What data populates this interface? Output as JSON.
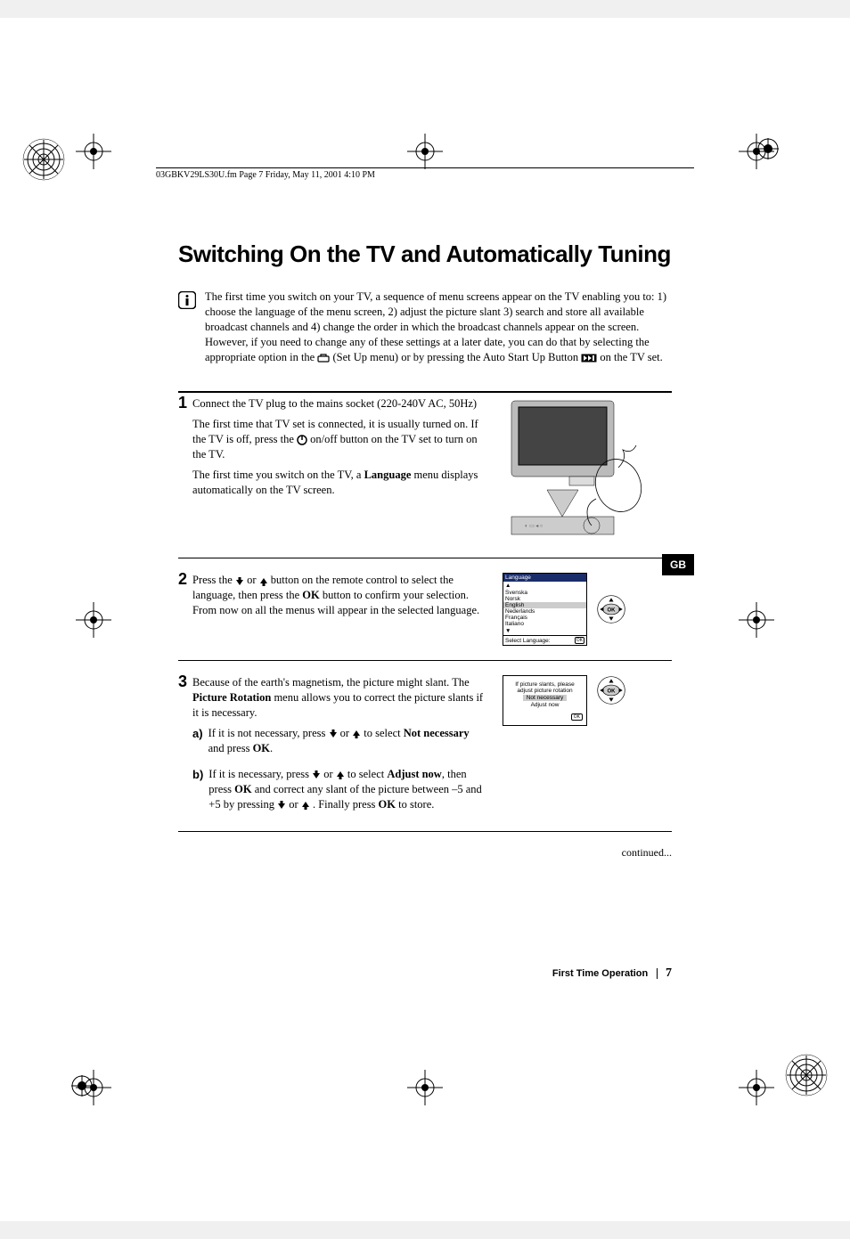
{
  "header": "03GBKV29LS30U.fm  Page 7  Friday, May 11, 2001  4:10 PM",
  "title": "Switching On the TV and Automatically Tuning",
  "intro_line1": "The first time you switch on your TV, a sequence of menu screens appear on the TV enabling you to: 1) choose the language of the menu screen, 2) adjust the picture slant 3) search and store all available broadcast channels and 4) change the order in which the broadcast channels appear on the screen.",
  "intro_line2_a": "However, if you need to change any of these settings at a later date, you can do that by selecting the appropriate option in the ",
  "intro_line2_b": " (Set Up menu) or by pressing the Auto Start Up Button ",
  "intro_line2_c": " on the TV set.",
  "step1": {
    "num": "1",
    "p1": "Connect the TV plug to the mains socket (220-240V AC, 50Hz)",
    "p2a": "The first time that TV set is connected, it is usually turned on. If the TV is off, press the ",
    "p2b": " on/off button on the TV set to turn on the TV.",
    "p3a": "The first time you switch on the TV, a ",
    "p3b": "Language",
    "p3c": " menu displays automatically on the TV screen."
  },
  "step2": {
    "num": "2",
    "a": "Press the  ",
    "b": " or ",
    "c": " button on the remote control to select the language, then press the ",
    "d": "OK",
    "e": " button to confirm your selection. From now on all the menus will appear in the selected language."
  },
  "osd_lang": {
    "title": "Language",
    "items": [
      "Svenska",
      "Norsk",
      "English",
      "Nederlands",
      "Français",
      "Italiano"
    ],
    "selected_index": 2,
    "footer": "Select Language:"
  },
  "step3": {
    "num": "3",
    "intro_a": "Because of the earth's magnetism, the picture might slant. The ",
    "intro_b": "Picture Rotation",
    "intro_c": " menu allows you to correct the picture slants if it is necessary.",
    "a_letter": "a)",
    "a1": "If it is not necessary, press ",
    "a2": " or ",
    "a3": " to select ",
    "a4": "Not necessary",
    "a5": " and press ",
    "a6": "OK",
    "a7": ".",
    "b_letter": "b)",
    "b1": "If it is necessary, press ",
    "b2": " or ",
    "b3": " to select ",
    "b4": "Adjust now",
    "b5": ", then press ",
    "b6": "OK",
    "b7": " and correct any slant of the picture between –5 and +5 by pressing ",
    "b8": " or ",
    "b9": " . Finally press ",
    "b10": "OK",
    "b11": " to store."
  },
  "osd_rot": {
    "line1": "If picture slants, please",
    "line2": "adjust picture rotation",
    "opt1": "Not necessary",
    "opt2": "Adjust now"
  },
  "continued": "continued...",
  "footer_section": "First Time Operation",
  "footer_page": "7",
  "gb": "GB"
}
